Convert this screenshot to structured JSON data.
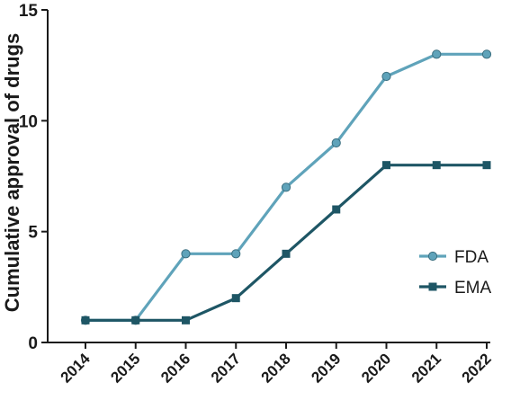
{
  "chart_data": {
    "type": "line",
    "title": "",
    "xlabel": "",
    "ylabel": "Cumulative approval of drugs",
    "x": [
      "2014",
      "2015",
      "2016",
      "2017",
      "2018",
      "2019",
      "2020",
      "2021",
      "2022"
    ],
    "ylim": [
      0,
      15
    ],
    "yticks": [
      "0",
      "5",
      "10",
      "15"
    ],
    "grid": false,
    "legend_position": "right",
    "series": [
      {
        "name": "FDA",
        "values": [
          1,
          1,
          4,
          4,
          7,
          9,
          12,
          13,
          13
        ],
        "color": "#5fa3ba",
        "marker": "circle"
      },
      {
        "name": "EMA",
        "values": [
          1,
          1,
          1,
          2,
          4,
          6,
          8,
          8,
          8
        ],
        "color": "#1e5665",
        "marker": "square"
      }
    ]
  }
}
